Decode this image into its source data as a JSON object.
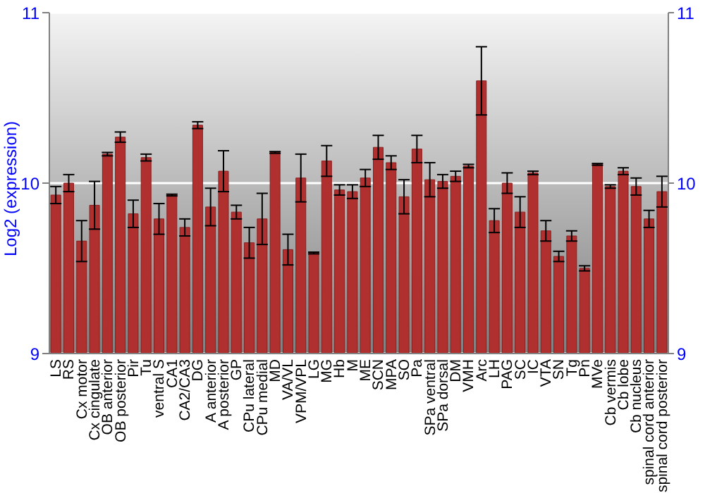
{
  "chart_data": {
    "type": "bar",
    "ylabel": "Log2 (expression)",
    "categories": [
      "LS",
      "RS",
      "Cx motor",
      "Cx cingulate",
      "OB anterior",
      "OB posterior",
      "Pir",
      "Tu",
      "ventral S",
      "CA1",
      "CA2/CA3",
      "DG",
      "A anterior",
      "A posterior",
      "GP",
      "CPu lateral",
      "CPu medial",
      "MD",
      "VA/VL",
      "VPM/VPL",
      "LG",
      "MG",
      "Hb",
      "M",
      "ME",
      "SCN",
      "MPA",
      "SO",
      "Pa",
      "SPa ventral",
      "SPa dorsal",
      "DM",
      "VMH",
      "Arc",
      "LH",
      "PAG",
      "SC",
      "IC",
      "VTA",
      "SN",
      "Tg",
      "Pn",
      "MVe",
      "Cb vermis",
      "Cb lobe",
      "Cb nucleus",
      "spinal cord anterior",
      "spinal cord posterior"
    ],
    "values": [
      9.93,
      10.0,
      9.66,
      9.87,
      10.17,
      10.27,
      9.82,
      10.15,
      9.79,
      9.93,
      9.74,
      10.34,
      9.86,
      10.07,
      9.83,
      9.65,
      9.79,
      10.18,
      9.61,
      10.03,
      9.59,
      10.13,
      9.96,
      9.95,
      10.03,
      10.21,
      10.12,
      9.92,
      10.2,
      10.02,
      10.01,
      10.04,
      10.1,
      10.6,
      9.78,
      10.0,
      9.83,
      10.06,
      9.72,
      9.57,
      9.69,
      9.5,
      10.11,
      9.98,
      10.07,
      9.98,
      9.79,
      9.95
    ],
    "errors": [
      0.05,
      0.05,
      0.12,
      0.14,
      0.01,
      0.03,
      0.08,
      0.02,
      0.09,
      0.005,
      0.05,
      0.02,
      0.11,
      0.12,
      0.04,
      0.09,
      0.15,
      0.005,
      0.09,
      0.14,
      0.005,
      0.09,
      0.03,
      0.04,
      0.05,
      0.07,
      0.04,
      0.1,
      0.08,
      0.1,
      0.04,
      0.03,
      0.01,
      0.2,
      0.07,
      0.06,
      0.09,
      0.01,
      0.06,
      0.03,
      0.03,
      0.015,
      0.005,
      0.01,
      0.02,
      0.05,
      0.05,
      0.09
    ],
    "color": "#b03030",
    "ylim": [
      9,
      11
    ],
    "yticks": [
      9,
      10,
      11
    ],
    "y2lim": [
      9,
      11
    ],
    "y2ticks": [
      9,
      10,
      11
    ],
    "grid": "y"
  }
}
